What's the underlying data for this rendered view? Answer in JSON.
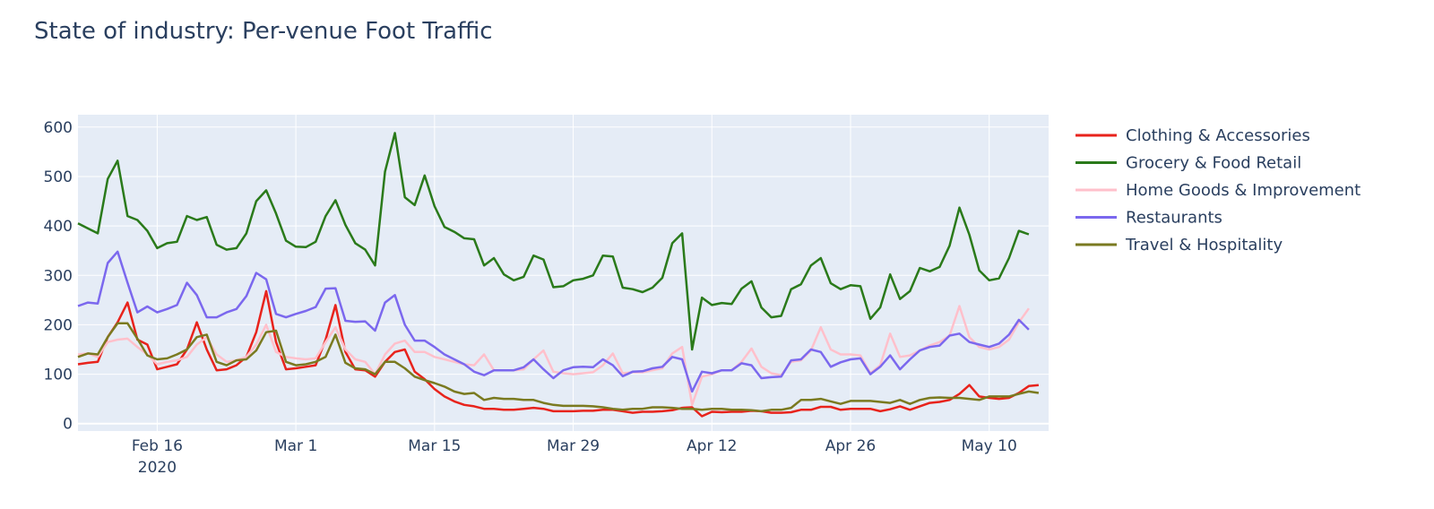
{
  "chart_data": {
    "type": "line",
    "title": "State of industry: Per-venue Foot Traffic",
    "xlabel": "",
    "ylabel": "",
    "ylim": [
      -15,
      625
    ],
    "xlim": [
      "2020-02-08",
      "2020-05-16"
    ],
    "y_ticks": [
      0,
      100,
      200,
      300,
      400,
      500,
      600
    ],
    "x_ticks": [
      {
        "date": "2020-02-16",
        "label": "Feb 16",
        "sublabel": "2020"
      },
      {
        "date": "2020-03-01",
        "label": "Mar 1",
        "sublabel": ""
      },
      {
        "date": "2020-03-15",
        "label": "Mar 15",
        "sublabel": ""
      },
      {
        "date": "2020-03-29",
        "label": "Mar 29",
        "sublabel": ""
      },
      {
        "date": "2020-04-12",
        "label": "Apr 12",
        "sublabel": ""
      },
      {
        "date": "2020-04-26",
        "label": "Apr 26",
        "sublabel": ""
      },
      {
        "date": "2020-05-10",
        "label": "May 10",
        "sublabel": ""
      }
    ],
    "grid": true,
    "legend_position": "right",
    "start_date": "2020-02-08",
    "series": [
      {
        "name": "Clothing & Accessories",
        "color": "#e8231c",
        "values": [
          120,
          123,
          125,
          175,
          205,
          245,
          170,
          160,
          110,
          115,
          120,
          150,
          205,
          150,
          108,
          110,
          118,
          135,
          185,
          268,
          165,
          110,
          112,
          115,
          118,
          170,
          240,
          145,
          110,
          108,
          95,
          125,
          145,
          150,
          105,
          90,
          70,
          55,
          45,
          38,
          35,
          30,
          30,
          28,
          28,
          30,
          32,
          30,
          25,
          25,
          25,
          26,
          26,
          28,
          28,
          25,
          22,
          24,
          24,
          25,
          27,
          32,
          33,
          15,
          24,
          23,
          24,
          24,
          26,
          25,
          22,
          22,
          23,
          28,
          28,
          34,
          34,
          28,
          30,
          30,
          30,
          25,
          29,
          35,
          28,
          35,
          42,
          44,
          48,
          60,
          78,
          55,
          52,
          50,
          52,
          62,
          76,
          78
        ]
      },
      {
        "name": "Grocery & Food Retail",
        "color": "#2a7a1a",
        "values": [
          405,
          395,
          385,
          495,
          532,
          420,
          412,
          390,
          355,
          365,
          368,
          420,
          412,
          418,
          362,
          352,
          355,
          385,
          450,
          472,
          425,
          370,
          358,
          357,
          368,
          420,
          452,
          402,
          365,
          352,
          320,
          510,
          588,
          458,
          442,
          502,
          440,
          398,
          388,
          375,
          373,
          320,
          335,
          302,
          290,
          297,
          340,
          332,
          276,
          278,
          290,
          293,
          300,
          340,
          338,
          275,
          272,
          266,
          275,
          295,
          365,
          385,
          150,
          255,
          240,
          244,
          242,
          273,
          288,
          235,
          215,
          218,
          272,
          282,
          320,
          335,
          284,
          272,
          280,
          278,
          212,
          235,
          302,
          252,
          268,
          315,
          308,
          317,
          360,
          437,
          382,
          310,
          290,
          294,
          335,
          390,
          383
        ]
      },
      {
        "name": "Home Goods & Improvement",
        "color": "#ffc0cb",
        "values": [
          140,
          142,
          135,
          165,
          170,
          172,
          155,
          140,
          120,
          125,
          128,
          135,
          160,
          175,
          140,
          125,
          128,
          135,
          160,
          200,
          145,
          135,
          132,
          130,
          132,
          165,
          195,
          150,
          130,
          125,
          100,
          140,
          162,
          168,
          145,
          145,
          135,
          130,
          125,
          120,
          118,
          140,
          108,
          108,
          108,
          110,
          130,
          148,
          105,
          102,
          100,
          102,
          104,
          118,
          142,
          102,
          104,
          104,
          108,
          112,
          142,
          155,
          38,
          95,
          100,
          108,
          108,
          125,
          152,
          115,
          102,
          98,
          125,
          128,
          148,
          195,
          150,
          140,
          140,
          138,
          102,
          118,
          182,
          135,
          138,
          148,
          158,
          165,
          178,
          238,
          175,
          155,
          150,
          155,
          170,
          205,
          233
        ]
      },
      {
        "name": "Restaurants",
        "color": "#7b68ee",
        "values": [
          238,
          245,
          243,
          325,
          348,
          285,
          225,
          237,
          225,
          232,
          240,
          285,
          260,
          215,
          215,
          225,
          232,
          258,
          305,
          292,
          222,
          215,
          222,
          228,
          236,
          273,
          274,
          208,
          206,
          207,
          188,
          245,
          260,
          200,
          168,
          168,
          155,
          140,
          130,
          120,
          105,
          98,
          108,
          108,
          108,
          114,
          130,
          110,
          92,
          108,
          114,
          115,
          114,
          130,
          118,
          96,
          105,
          106,
          112,
          115,
          135,
          130,
          65,
          105,
          102,
          108,
          108,
          122,
          118,
          92,
          94,
          95,
          128,
          130,
          150,
          145,
          115,
          124,
          130,
          132,
          100,
          115,
          138,
          110,
          130,
          148,
          155,
          158,
          178,
          182,
          165,
          160,
          155,
          162,
          180,
          210,
          190
        ]
      },
      {
        "name": "Travel & Hospitality",
        "color": "#7a7a20",
        "values": [
          135,
          142,
          140,
          175,
          203,
          203,
          172,
          138,
          130,
          132,
          140,
          150,
          175,
          180,
          125,
          118,
          128,
          130,
          148,
          185,
          188,
          125,
          118,
          120,
          125,
          135,
          180,
          123,
          112,
          110,
          100,
          125,
          125,
          112,
          95,
          88,
          82,
          75,
          65,
          60,
          62,
          48,
          52,
          50,
          50,
          48,
          48,
          42,
          38,
          36,
          36,
          36,
          35,
          33,
          30,
          28,
          30,
          30,
          33,
          33,
          32,
          30,
          30,
          28,
          30,
          30,
          28,
          28,
          27,
          25,
          28,
          28,
          32,
          48,
          48,
          50,
          45,
          40,
          46,
          46,
          46,
          44,
          42,
          48,
          40,
          48,
          52,
          53,
          52,
          52,
          50,
          48,
          55,
          55,
          55,
          60,
          65,
          62
        ]
      }
    ]
  }
}
